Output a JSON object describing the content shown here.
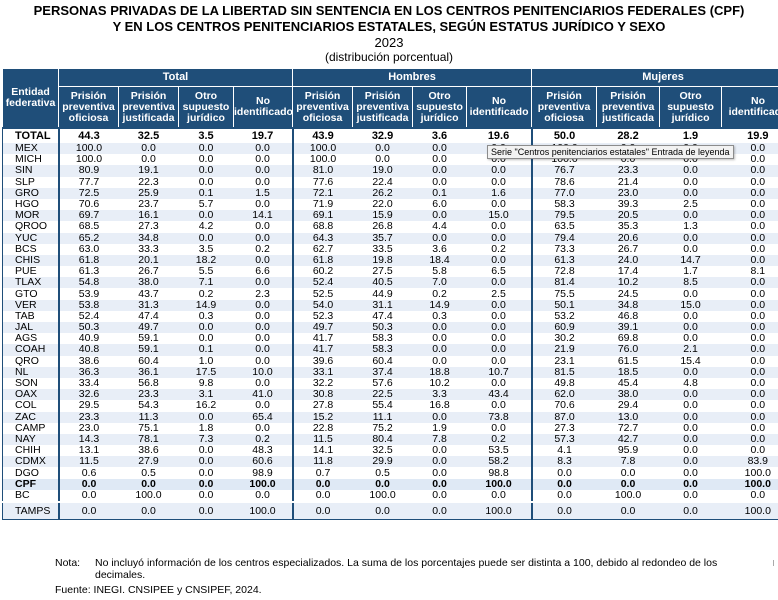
{
  "title": {
    "line1": "PERSONAS PRIVADAS DE LA LIBERTAD SIN SENTENCIA EN LOS CENTROS PENITENCIARIOS FEDERALES (CPF)",
    "line2": "Y EN LOS CENTROS PENITENCIARIOS ESTATALES, SEGÚN ESTATUS JURÍDICO Y SEXO",
    "year": "2023",
    "subtitle": "(distribución porcentual)"
  },
  "table": {
    "entity_header": "Entidad federativa",
    "groups": [
      "Total",
      "Hombres",
      "Mujeres"
    ],
    "columns": [
      "Prisión preventiva oficiosa",
      "Prisión preventiva justificada",
      "Otro supuesto jurídico",
      "No identificado"
    ],
    "total_row": {
      "entity": "TOTAL",
      "values": [
        "44.3",
        "32.5",
        "3.5",
        "19.7",
        "43.9",
        "32.9",
        "3.6",
        "19.6",
        "50.0",
        "28.2",
        "1.9",
        "19.9"
      ]
    },
    "rows": [
      {
        "entity": "MEX",
        "values": [
          "100.0",
          "0.0",
          "0.0",
          "0.0",
          "100.0",
          "0.0",
          "0.0",
          "0.0",
          "100.0",
          "0.0",
          "0.0",
          "0.0"
        ]
      },
      {
        "entity": "MICH",
        "values": [
          "100.0",
          "0.0",
          "0.0",
          "0.0",
          "100.0",
          "0.0",
          "0.0",
          "0.0",
          "100.0",
          "0.0",
          "0.0",
          "0.0"
        ]
      },
      {
        "entity": "SIN",
        "values": [
          "80.9",
          "19.1",
          "0.0",
          "0.0",
          "81.0",
          "19.0",
          "0.0",
          "0.0",
          "76.7",
          "23.3",
          "0.0",
          "0.0"
        ]
      },
      {
        "entity": "SLP",
        "values": [
          "77.7",
          "22.3",
          "0.0",
          "0.0",
          "77.6",
          "22.4",
          "0.0",
          "0.0",
          "78.6",
          "21.4",
          "0.0",
          "0.0"
        ]
      },
      {
        "entity": "GRO",
        "values": [
          "72.5",
          "25.9",
          "0.1",
          "1.5",
          "72.1",
          "26.2",
          "0.1",
          "1.6",
          "77.0",
          "23.0",
          "0.0",
          "0.0"
        ]
      },
      {
        "entity": "HGO",
        "values": [
          "70.6",
          "23.7",
          "5.7",
          "0.0",
          "71.9",
          "22.0",
          "6.0",
          "0.0",
          "58.3",
          "39.3",
          "2.5",
          "0.0"
        ]
      },
      {
        "entity": "MOR",
        "values": [
          "69.7",
          "16.1",
          "0.0",
          "14.1",
          "69.1",
          "15.9",
          "0.0",
          "15.0",
          "79.5",
          "20.5",
          "0.0",
          "0.0"
        ]
      },
      {
        "entity": "QROO",
        "values": [
          "68.5",
          "27.3",
          "4.2",
          "0.0",
          "68.8",
          "26.8",
          "4.4",
          "0.0",
          "63.5",
          "35.3",
          "1.3",
          "0.0"
        ]
      },
      {
        "entity": "YUC",
        "values": [
          "65.2",
          "34.8",
          "0.0",
          "0.0",
          "64.3",
          "35.7",
          "0.0",
          "0.0",
          "79.4",
          "20.6",
          "0.0",
          "0.0"
        ]
      },
      {
        "entity": "BCS",
        "values": [
          "63.0",
          "33.3",
          "3.5",
          "0.2",
          "62.7",
          "33.5",
          "3.6",
          "0.2",
          "73.3",
          "26.7",
          "0.0",
          "0.0"
        ]
      },
      {
        "entity": "CHIS",
        "values": [
          "61.8",
          "20.1",
          "18.2",
          "0.0",
          "61.8",
          "19.8",
          "18.4",
          "0.0",
          "61.3",
          "24.0",
          "14.7",
          "0.0"
        ]
      },
      {
        "entity": "PUE",
        "values": [
          "61.3",
          "26.7",
          "5.5",
          "6.6",
          "60.2",
          "27.5",
          "5.8",
          "6.5",
          "72.8",
          "17.4",
          "1.7",
          "8.1"
        ]
      },
      {
        "entity": "TLAX",
        "values": [
          "54.8",
          "38.0",
          "7.1",
          "0.0",
          "52.4",
          "40.5",
          "7.0",
          "0.0",
          "81.4",
          "10.2",
          "8.5",
          "0.0"
        ]
      },
      {
        "entity": "GTO",
        "values": [
          "53.9",
          "43.7",
          "0.2",
          "2.3",
          "52.5",
          "44.9",
          "0.2",
          "2.5",
          "75.5",
          "24.5",
          "0.0",
          "0.0"
        ]
      },
      {
        "entity": "VER",
        "values": [
          "53.8",
          "31.3",
          "14.9",
          "0.0",
          "54.0",
          "31.1",
          "14.9",
          "0.0",
          "50.1",
          "34.8",
          "15.0",
          "0.0"
        ]
      },
      {
        "entity": "TAB",
        "values": [
          "52.4",
          "47.4",
          "0.3",
          "0.0",
          "52.3",
          "47.4",
          "0.3",
          "0.0",
          "53.2",
          "46.8",
          "0.0",
          "0.0"
        ]
      },
      {
        "entity": "JAL",
        "values": [
          "50.3",
          "49.7",
          "0.0",
          "0.0",
          "49.7",
          "50.3",
          "0.0",
          "0.0",
          "60.9",
          "39.1",
          "0.0",
          "0.0"
        ]
      },
      {
        "entity": "AGS",
        "values": [
          "40.9",
          "59.1",
          "0.0",
          "0.0",
          "41.7",
          "58.3",
          "0.0",
          "0.0",
          "30.2",
          "69.8",
          "0.0",
          "0.0"
        ]
      },
      {
        "entity": "COAH",
        "values": [
          "40.8",
          "59.1",
          "0.1",
          "0.0",
          "41.7",
          "58.3",
          "0.0",
          "0.0",
          "21.9",
          "76.0",
          "2.1",
          "0.0"
        ]
      },
      {
        "entity": "QRO",
        "values": [
          "38.6",
          "60.4",
          "1.0",
          "0.0",
          "39.6",
          "60.4",
          "0.0",
          "0.0",
          "23.1",
          "61.5",
          "15.4",
          "0.0"
        ]
      },
      {
        "entity": "NL",
        "values": [
          "36.3",
          "36.1",
          "17.5",
          "10.0",
          "33.1",
          "37.4",
          "18.8",
          "10.7",
          "81.5",
          "18.5",
          "0.0",
          "0.0"
        ]
      },
      {
        "entity": "SON",
        "values": [
          "33.4",
          "56.8",
          "9.8",
          "0.0",
          "32.2",
          "57.6",
          "10.2",
          "0.0",
          "49.8",
          "45.4",
          "4.8",
          "0.0"
        ]
      },
      {
        "entity": "OAX",
        "values": [
          "32.6",
          "23.3",
          "3.1",
          "41.0",
          "30.8",
          "22.5",
          "3.3",
          "43.4",
          "62.0",
          "38.0",
          "0.0",
          "0.0"
        ]
      },
      {
        "entity": "COL",
        "values": [
          "29.5",
          "54.3",
          "16.2",
          "0.0",
          "27.8",
          "55.4",
          "16.8",
          "0.0",
          "70.6",
          "29.4",
          "0.0",
          "0.0"
        ]
      },
      {
        "entity": "ZAC",
        "values": [
          "23.3",
          "11.3",
          "0.0",
          "65.4",
          "15.2",
          "11.1",
          "0.0",
          "73.8",
          "87.0",
          "13.0",
          "0.0",
          "0.0"
        ]
      },
      {
        "entity": "CAMP",
        "values": [
          "23.0",
          "75.1",
          "1.8",
          "0.0",
          "22.8",
          "75.2",
          "1.9",
          "0.0",
          "27.3",
          "72.7",
          "0.0",
          "0.0"
        ]
      },
      {
        "entity": "NAY",
        "values": [
          "14.3",
          "78.1",
          "7.3",
          "0.2",
          "11.5",
          "80.4",
          "7.8",
          "0.2",
          "57.3",
          "42.7",
          "0.0",
          "0.0"
        ]
      },
      {
        "entity": "CHIH",
        "values": [
          "13.1",
          "38.6",
          "0.0",
          "48.3",
          "14.1",
          "32.5",
          "0.0",
          "53.5",
          "4.1",
          "95.9",
          "0.0",
          "0.0"
        ]
      },
      {
        "entity": "CDMX",
        "values": [
          "11.5",
          "27.9",
          "0.0",
          "60.6",
          "11.8",
          "29.9",
          "0.0",
          "58.2",
          "8.3",
          "7.8",
          "0.0",
          "83.9"
        ]
      },
      {
        "entity": "DGO",
        "values": [
          "0.6",
          "0.5",
          "0.0",
          "98.9",
          "0.7",
          "0.5",
          "0.0",
          "98.8",
          "0.0",
          "0.0",
          "0.0",
          "100.0"
        ]
      },
      {
        "entity": "CPF",
        "values": [
          "0.0",
          "0.0",
          "0.0",
          "100.0",
          "0.0",
          "0.0",
          "0.0",
          "100.0",
          "0.0",
          "0.0",
          "0.0",
          "100.0"
        ]
      },
      {
        "entity": "BC",
        "values": [
          "0.0",
          "100.0",
          "0.0",
          "0.0",
          "0.0",
          "100.0",
          "0.0",
          "0.0",
          "0.0",
          "100.0",
          "0.0",
          "0.0"
        ]
      }
    ],
    "last_row": {
      "entity": "TAMPS",
      "values": [
        "0.0",
        "0.0",
        "0.0",
        "100.0",
        "0.0",
        "0.0",
        "0.0",
        "100.0",
        "0.0",
        "0.0",
        "0.0",
        "100.0"
      ]
    }
  },
  "tooltip": "Serie \"Centros penitenciarios estatales\" Entrada de leyenda",
  "note": {
    "label": "Nota:",
    "text": "No incluyó información de los centros especializados. La suma de los porcentajes puede ser distinta a 100, debido al redondeo de los decimales."
  },
  "source": {
    "label": "Fuente:",
    "text": "INEGI. CNSIPEE y CNSIPEF, 2024."
  },
  "colors": {
    "header_bg": "#1f4e79",
    "cpf_row_bg": "#dfe9f5",
    "stripe_bg": "#e8eef7"
  }
}
